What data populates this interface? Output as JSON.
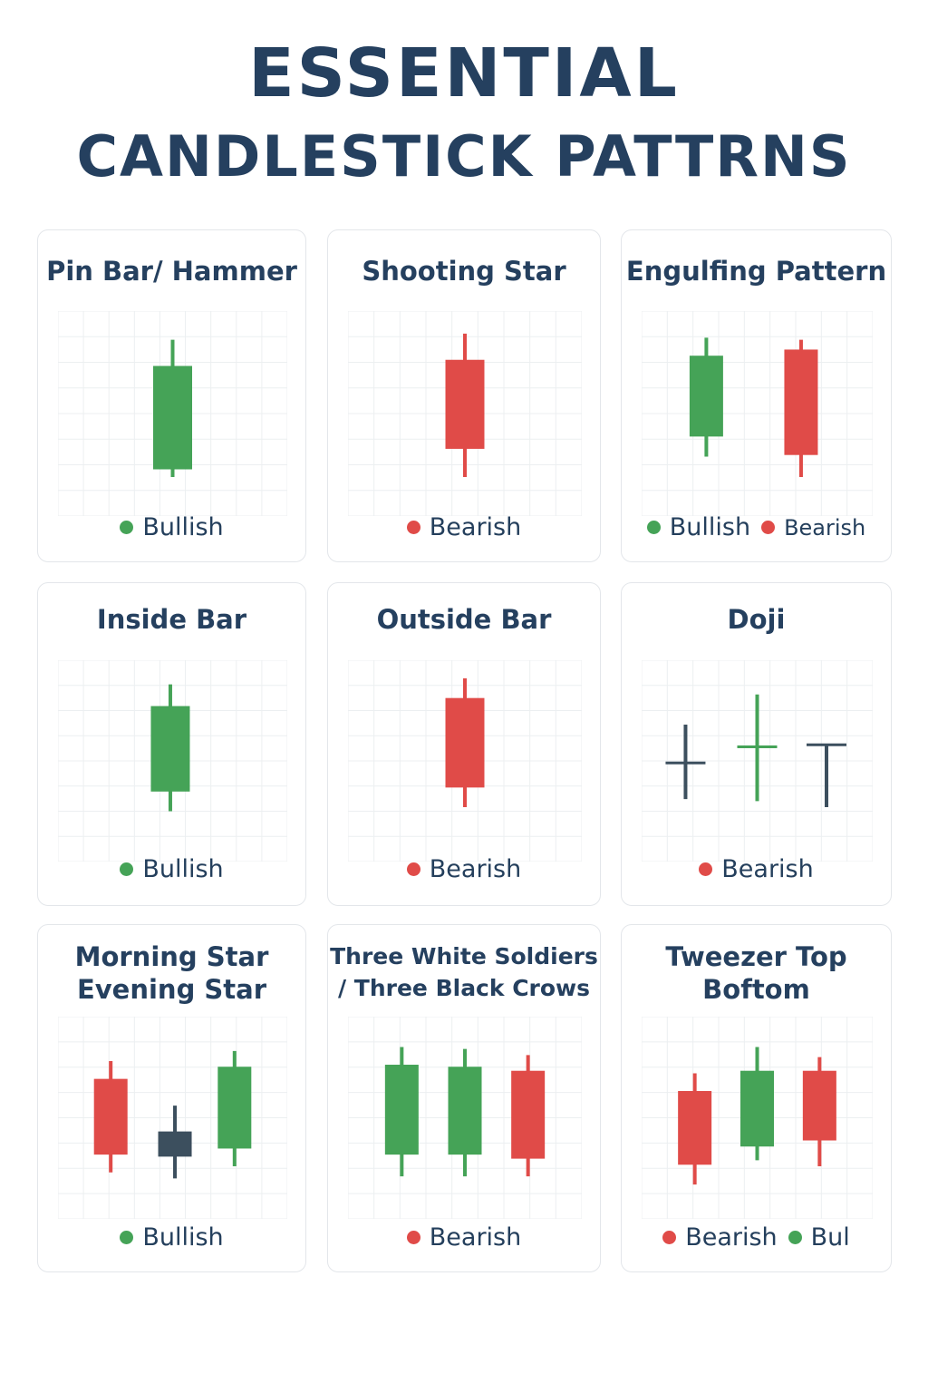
{
  "title": {
    "line1": "ESSENTIAL",
    "line2": "CANDLESTICK PATTRNS"
  },
  "colors": {
    "bull": "#45a357",
    "bear": "#e04b48",
    "neutral": "#3c4f5e",
    "grid": "#eceff1",
    "title": "#25405f"
  },
  "cards": [
    {
      "title": [
        "Pin Bar/ Hammer"
      ],
      "legend": [
        {
          "label": "Bullish",
          "color": "#45a357"
        }
      ],
      "candles": [
        {
          "x": 0.5,
          "high": 0.86,
          "open": 0.23,
          "close": 0.73,
          "low": 0.19,
          "kind": "bull"
        }
      ]
    },
    {
      "title": [
        "Shooting Star"
      ],
      "legend": [
        {
          "label": "Bearish",
          "color": "#e04b48"
        }
      ],
      "candles": [
        {
          "x": 0.5,
          "high": 0.89,
          "open": 0.76,
          "close": 0.33,
          "low": 0.19,
          "kind": "bear"
        }
      ]
    },
    {
      "title": [
        "Engulfing Pattern"
      ],
      "legend": [
        {
          "label": "Bullish",
          "color": "#45a357"
        },
        {
          "label": "Bearish",
          "color": "#e04b48"
        }
      ],
      "candles": [
        {
          "x": 0.28,
          "high": 0.87,
          "open": 0.39,
          "close": 0.78,
          "low": 0.29,
          "kind": "bull"
        },
        {
          "x": 0.69,
          "high": 0.86,
          "open": 0.81,
          "close": 0.3,
          "low": 0.19,
          "kind": "bear"
        }
      ]
    },
    {
      "title": [
        "Inside Bar"
      ],
      "legend": [
        {
          "label": "Bullish",
          "color": "#45a357"
        }
      ],
      "candles": [
        {
          "x": 0.49,
          "high": 0.88,
          "open": 0.35,
          "close": 0.77,
          "low": 0.25,
          "kind": "bull"
        }
      ]
    },
    {
      "title": [
        "Outside Bar"
      ],
      "legend": [
        {
          "label": "Bearish",
          "color": "#e04b48"
        }
      ],
      "candles": [
        {
          "x": 0.5,
          "high": 0.91,
          "open": 0.81,
          "close": 0.37,
          "low": 0.27,
          "kind": "bear"
        }
      ]
    },
    {
      "title": [
        "Doji"
      ],
      "legend": [
        {
          "label": "Bearish",
          "color": "#e04b48"
        }
      ],
      "candles": [
        {
          "x": 0.19,
          "high": 0.68,
          "open": 0.49,
          "close": 0.49,
          "low": 0.31,
          "kind": "neutral"
        },
        {
          "x": 0.5,
          "high": 0.83,
          "open": 0.57,
          "close": 0.57,
          "low": 0.3,
          "kind": "bull"
        },
        {
          "x": 0.8,
          "high": 0.58,
          "open": 0.58,
          "close": 0.58,
          "low": 0.27,
          "kind": "neutral"
        }
      ]
    },
    {
      "title": [
        "Morning Star",
        "Evening Star"
      ],
      "legend": [
        {
          "label": "Bullish",
          "color": "#45a357"
        }
      ],
      "candles": [
        {
          "x": 0.23,
          "high": 0.78,
          "open": 0.69,
          "close": 0.32,
          "low": 0.23,
          "kind": "bear"
        },
        {
          "x": 0.51,
          "high": 0.56,
          "open": 0.43,
          "close": 0.31,
          "low": 0.2,
          "kind": "neutral"
        },
        {
          "x": 0.77,
          "high": 0.83,
          "open": 0.35,
          "close": 0.75,
          "low": 0.26,
          "kind": "bull"
        }
      ]
    },
    {
      "title": [
        "Three White Soldiers",
        "/ Three Black Crows"
      ],
      "legend": [
        {
          "label": "Bearish",
          "color": "#e04b48"
        }
      ],
      "candles": [
        {
          "x": 0.23,
          "high": 0.85,
          "open": 0.32,
          "close": 0.76,
          "low": 0.21,
          "kind": "bull"
        },
        {
          "x": 0.5,
          "high": 0.84,
          "open": 0.32,
          "close": 0.75,
          "low": 0.21,
          "kind": "bull"
        },
        {
          "x": 0.77,
          "high": 0.81,
          "open": 0.73,
          "close": 0.3,
          "low": 0.21,
          "kind": "bear"
        }
      ]
    },
    {
      "title": [
        "Tweezer Top",
        "Boftom"
      ],
      "legend": [
        {
          "label": "Bearish",
          "color": "#e04b48"
        },
        {
          "label": "Bul",
          "color": "#45a357"
        }
      ],
      "candles": [
        {
          "x": 0.23,
          "high": 0.72,
          "open": 0.63,
          "close": 0.27,
          "low": 0.17,
          "kind": "bear"
        },
        {
          "x": 0.5,
          "high": 0.85,
          "open": 0.36,
          "close": 0.73,
          "low": 0.29,
          "kind": "bull"
        },
        {
          "x": 0.77,
          "high": 0.8,
          "open": 0.73,
          "close": 0.39,
          "low": 0.26,
          "kind": "bear"
        }
      ]
    }
  ]
}
